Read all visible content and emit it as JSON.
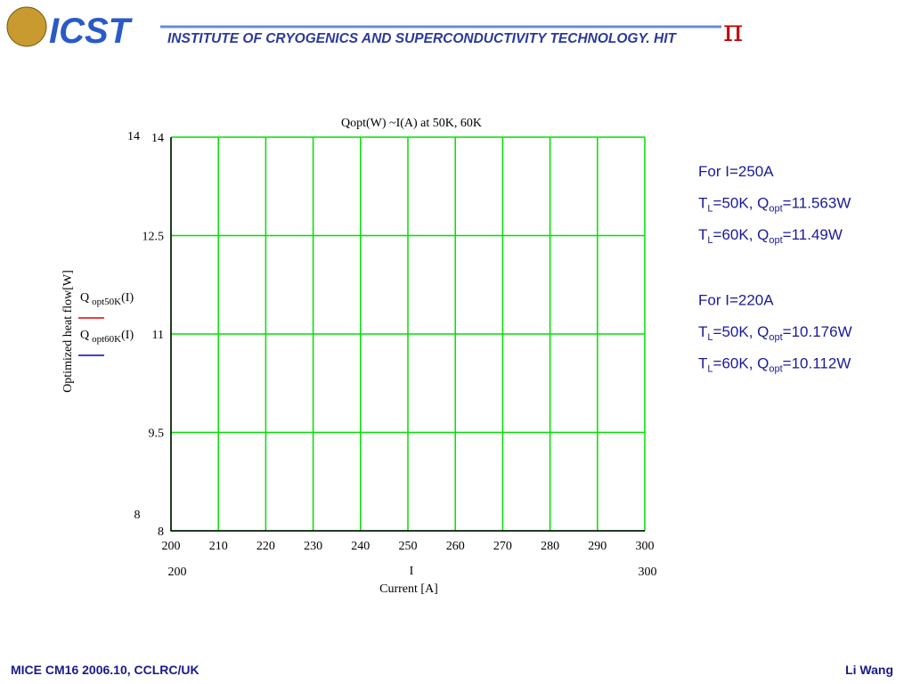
{
  "header": {
    "logo": "ICST",
    "institute": "INSTITUTE OF CRYOGENICS AND SUPERCONDUCTIVITY TECHNOLOGY. HIT"
  },
  "chart_data": {
    "type": "line",
    "title": "Qopt(W) ~I(A) at 50K, 60K",
    "x_variable": "I",
    "x_label": "Current [A]",
    "y_label": "Optimized heat flow[W]",
    "xlim": [
      200,
      300
    ],
    "xticks": [
      200,
      210,
      220,
      230,
      240,
      250,
      260,
      270,
      280,
      290,
      300
    ],
    "ylim": [
      8,
      14
    ],
    "yticks": [
      8,
      9.5,
      11,
      12.5,
      14
    ],
    "grid": true,
    "grid_color": "#00e000",
    "series": [
      {
        "name": "Q",
        "subscript": "opt50K",
        "suffix": "(I)",
        "color": "#e00000"
      },
      {
        "name": "Q",
        "subscript": "opt60K",
        "suffix": "(I)",
        "color": "#0000c8"
      }
    ]
  },
  "notes": [
    {
      "lines": [
        [
          "For I=250A"
        ],
        [
          "T",
          "L",
          "=50K, Q",
          "opt",
          "=11.563W"
        ],
        [
          "T",
          "L",
          "=60K, Q",
          "opt",
          "=11.49W"
        ]
      ]
    },
    {
      "lines": [
        [
          "For I=220A"
        ],
        [
          "T",
          "L",
          "=50K, Q",
          "opt",
          "=10.176W"
        ],
        [
          "T",
          "L",
          "=60K, Q",
          "opt",
          "=10.112W"
        ]
      ]
    }
  ],
  "footer": {
    "left": "MICE CM16 2006.10, CCLRC/UK",
    "right": "Li Wang"
  }
}
